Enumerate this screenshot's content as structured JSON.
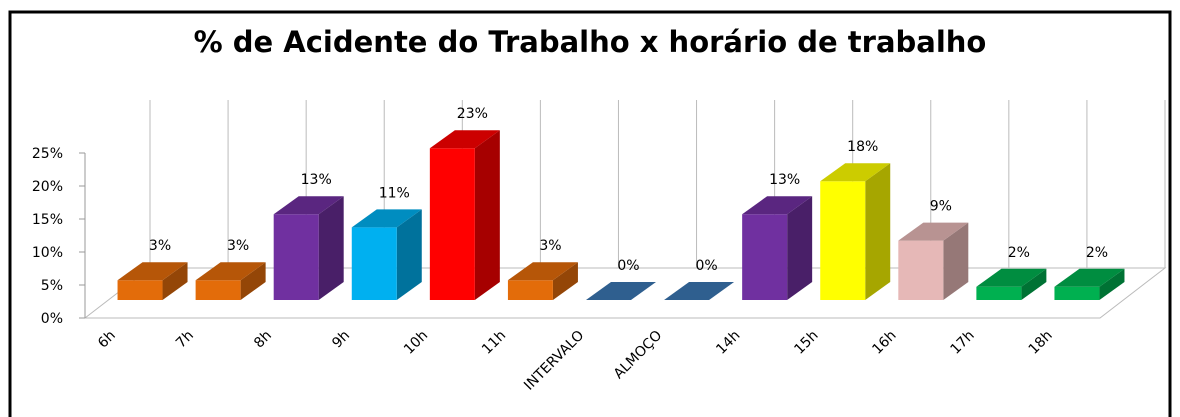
{
  "chart_data": {
    "type": "bar3d",
    "title": "% de Acidente do Trabalho  x horário de trabalho",
    "categories": [
      "6h",
      "7h",
      "8h",
      "9h",
      "10h",
      "11h",
      "INTERVALO",
      "ALMOÇO",
      "14h",
      "15h",
      "16h",
      "17h",
      "18h"
    ],
    "values": [
      3,
      3,
      13,
      11,
      23,
      3,
      0,
      0,
      13,
      18,
      9,
      2,
      2
    ],
    "value_labels": [
      "3%",
      "3%",
      "13%",
      "11%",
      "23%",
      "3%",
      "0%",
      "0%",
      "13%",
      "18%",
      "9%",
      "2%",
      "2%"
    ],
    "colors": [
      "#e36c0a",
      "#e36c0a",
      "#7030a0",
      "#00b0f0",
      "#ff0000",
      "#e36c0a",
      "#2f5f8f",
      "#2f5f8f",
      "#7030a0",
      "#ffff00",
      "#e6b8b7",
      "#00b050",
      "#00b050"
    ],
    "ylim": [
      0,
      25
    ],
    "yticks": [
      {
        "value": 0,
        "label": "0%"
      },
      {
        "value": 5,
        "label": "5%"
      },
      {
        "value": 10,
        "label": "10%"
      },
      {
        "value": 15,
        "label": "15%"
      },
      {
        "value": 20,
        "label": "20%"
      },
      {
        "value": 25,
        "label": "25%"
      }
    ]
  }
}
